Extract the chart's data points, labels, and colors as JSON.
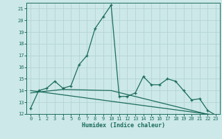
{
  "title": "",
  "xlabel": "Humidex (Indice chaleur)",
  "background_color": "#cce8e8",
  "grid_color": "#b0d0d0",
  "line_color": "#1a6b5a",
  "xlim": [
    -0.5,
    23.5
  ],
  "ylim": [
    12,
    21.5
  ],
  "yticks": [
    12,
    13,
    14,
    15,
    16,
    17,
    18,
    19,
    20,
    21
  ],
  "xticks": [
    0,
    1,
    2,
    3,
    4,
    5,
    6,
    7,
    8,
    9,
    10,
    11,
    12,
    13,
    14,
    15,
    16,
    17,
    18,
    19,
    20,
    21,
    22,
    23
  ],
  "series1_x": [
    0,
    1,
    2,
    3,
    4,
    5,
    6,
    7,
    8,
    9,
    10,
    11,
    12,
    13,
    14,
    15,
    16,
    17,
    18,
    19,
    20,
    21,
    22,
    23
  ],
  "series1_y": [
    12.5,
    14.0,
    14.2,
    14.8,
    14.2,
    14.4,
    16.2,
    17.0,
    19.3,
    20.3,
    21.3,
    13.5,
    13.5,
    13.8,
    15.2,
    14.5,
    14.5,
    15.0,
    14.8,
    14.0,
    13.2,
    13.3,
    12.3,
    11.9
  ],
  "series2_x": [
    0,
    23
  ],
  "series2_y": [
    14.0,
    11.9
  ],
  "series3_x": [
    0,
    4,
    10,
    23
  ],
  "series3_y": [
    13.8,
    14.1,
    14.0,
    11.8
  ]
}
